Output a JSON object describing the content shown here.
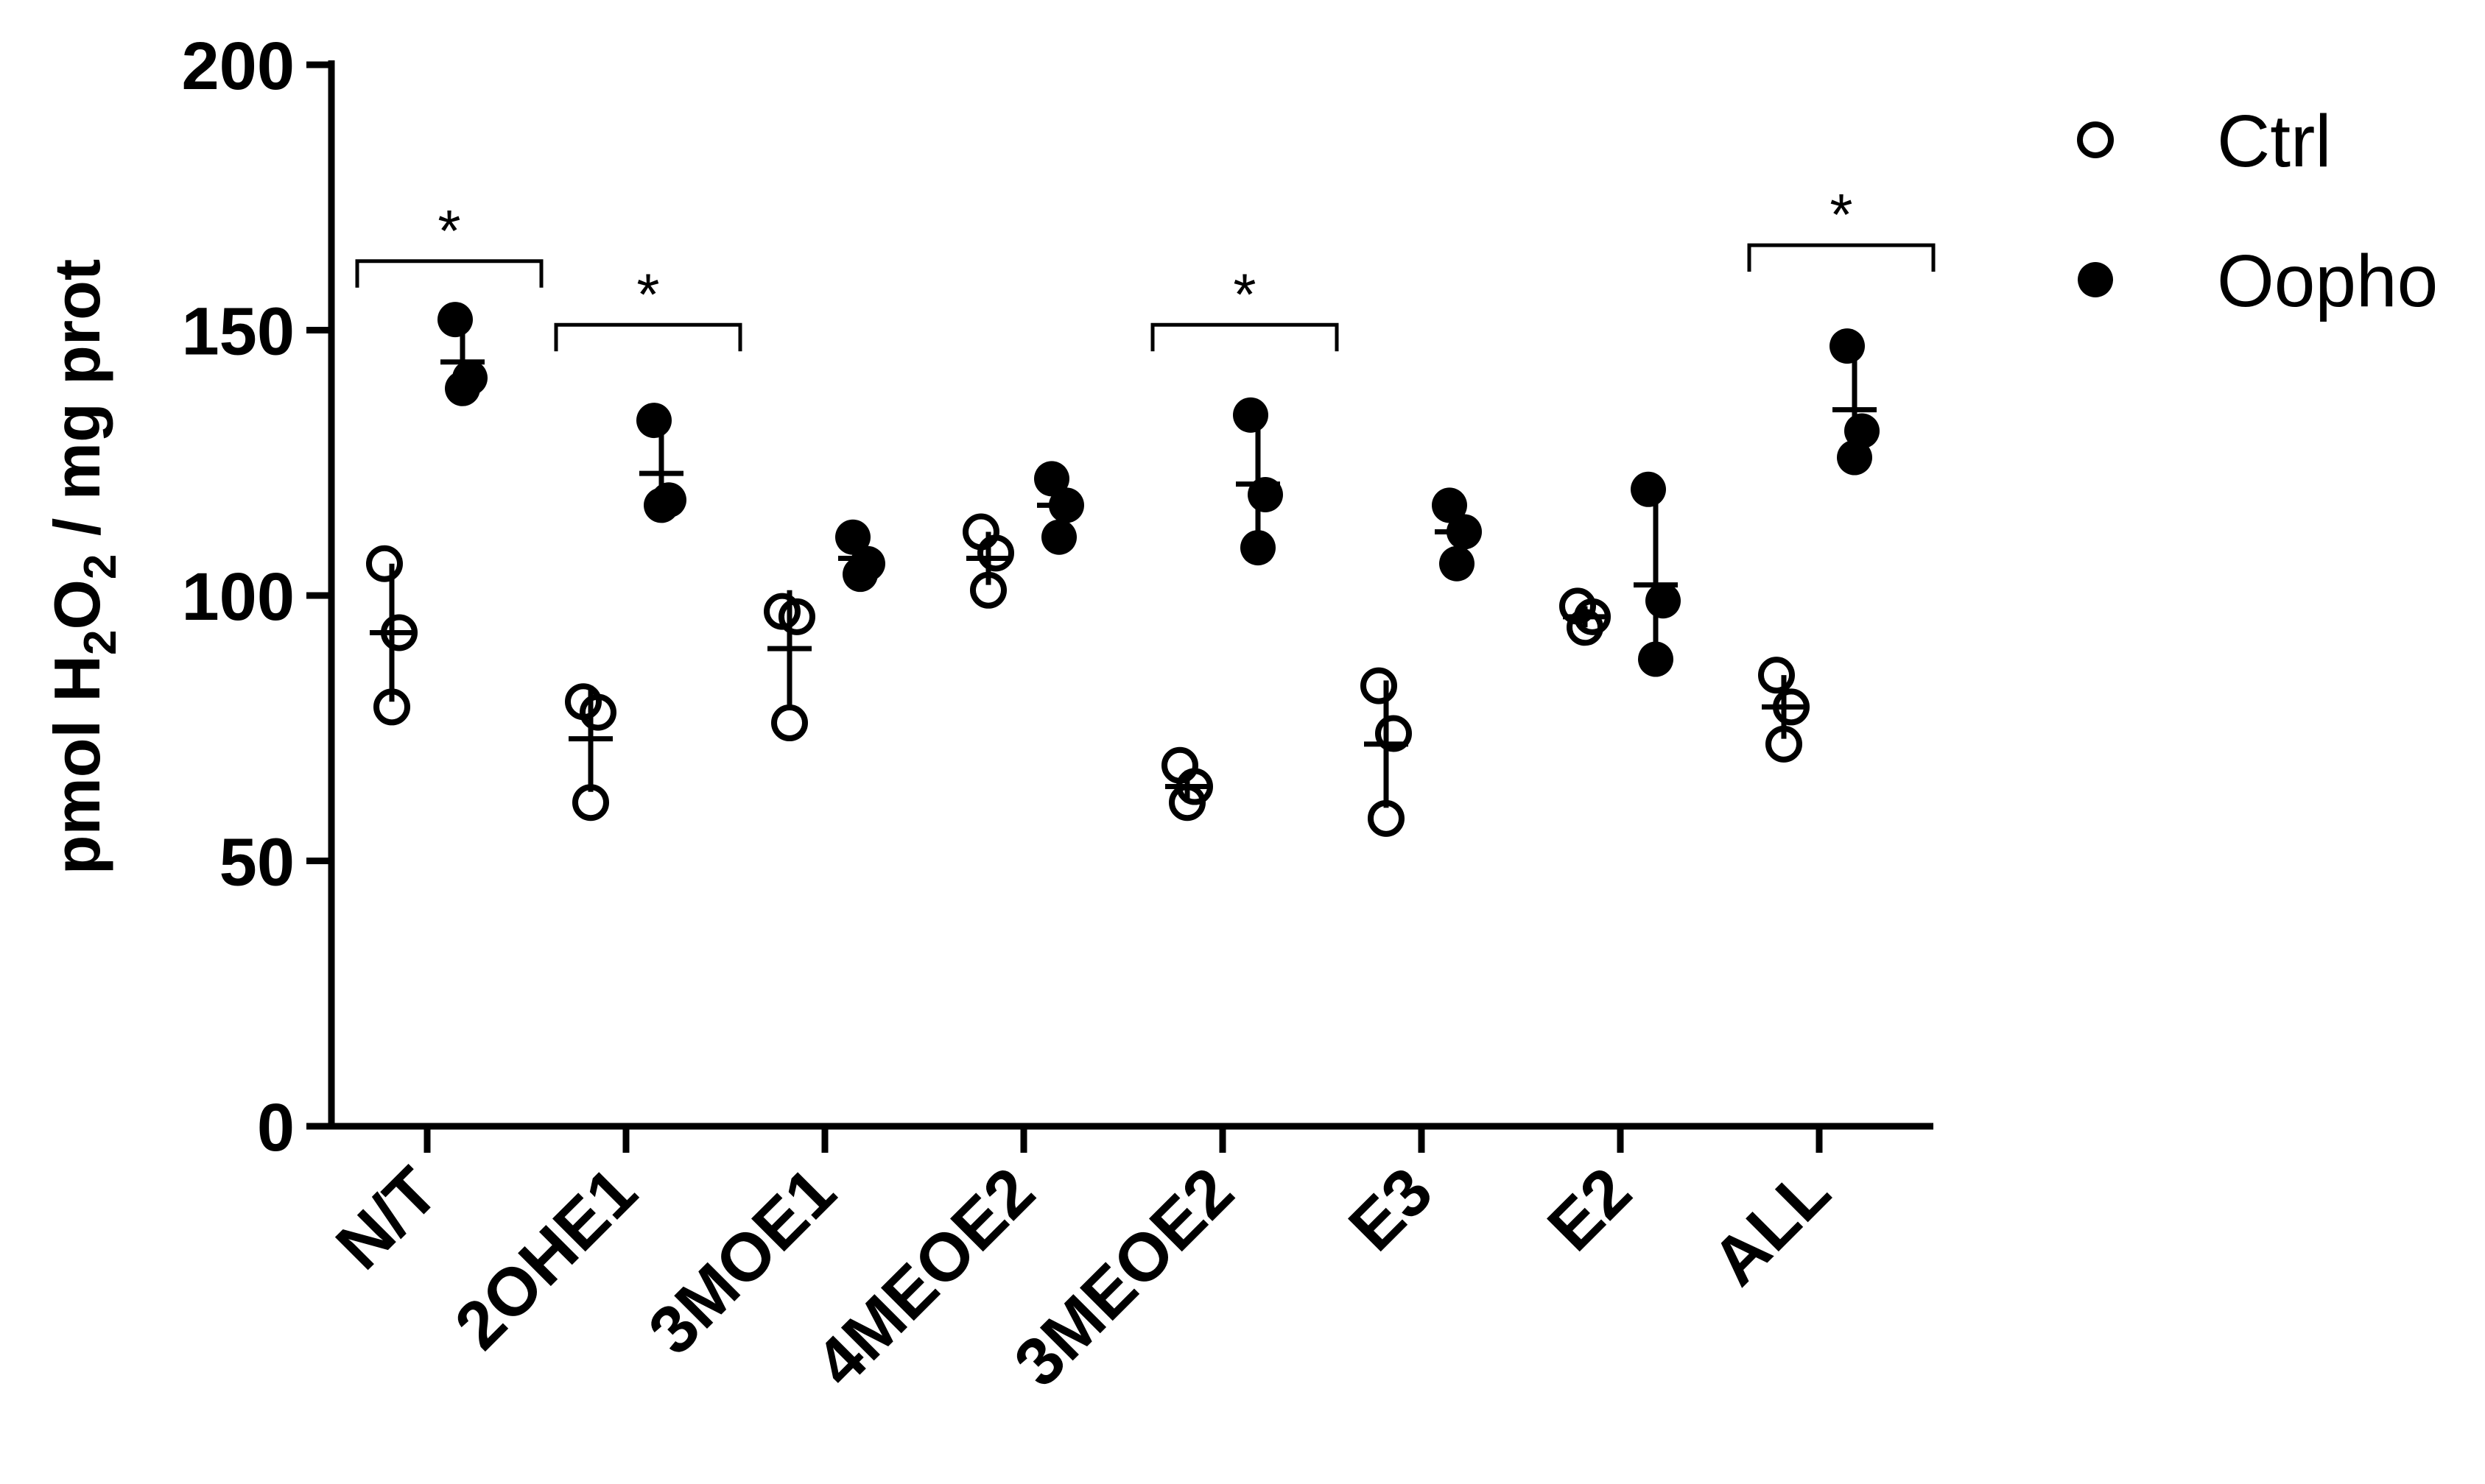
{
  "chart_data": {
    "type": "scatter",
    "ylabel": {
      "prefix": "pmol H",
      "sub1": "2",
      "mid": "O",
      "sub2": "2",
      "suffix": " / mg prot"
    },
    "xlabel": "",
    "ylim": [
      0,
      200
    ],
    "yticks": [
      "0",
      "50",
      "100",
      "150",
      "200"
    ],
    "categories": [
      "N/T",
      "2OHE1",
      "3MOE1",
      "4MEOE2",
      "3MEOE2",
      "E3",
      "E2",
      "ALL"
    ],
    "legend": {
      "placement": "top-right"
    },
    "series": [
      {
        "name": "Ctrl",
        "marker": "open-circle",
        "points": [
          [
            106,
            93,
            79
          ],
          [
            80,
            78,
            61
          ],
          [
            97,
            96,
            76
          ],
          [
            112,
            108,
            101
          ],
          [
            68,
            64,
            61
          ],
          [
            83,
            74,
            58
          ],
          [
            98,
            96,
            94
          ],
          [
            85,
            79,
            72
          ]
        ],
        "mean": [
          93,
          73,
          90,
          107,
          64,
          72,
          96,
          79
        ],
        "error": [
          13,
          10,
          11,
          5,
          3,
          12,
          2,
          6
        ]
      },
      {
        "name": "Oopho",
        "marker": "filled-circle",
        "points": [
          [
            152,
            141,
            139
          ],
          [
            133,
            118,
            117
          ],
          [
            111,
            106,
            104
          ],
          [
            122,
            117,
            111
          ],
          [
            134,
            119,
            109
          ],
          [
            117,
            112,
            106
          ],
          [
            120,
            99,
            88
          ],
          [
            147,
            131,
            126
          ]
        ],
        "mean": [
          144,
          123,
          107,
          117,
          121,
          112,
          102,
          135
        ],
        "error": [
          7,
          9,
          4,
          5,
          13,
          5,
          16,
          11
        ]
      }
    ],
    "significance": [
      {
        "category_index": 0,
        "label": "*",
        "bracket_y": 163
      },
      {
        "category_index": 1,
        "label": "*",
        "bracket_y": 151
      },
      {
        "category_index": 4,
        "label": "*",
        "bracket_y": 151
      },
      {
        "category_index": 7,
        "label": "*",
        "bracket_y": 166
      }
    ]
  }
}
